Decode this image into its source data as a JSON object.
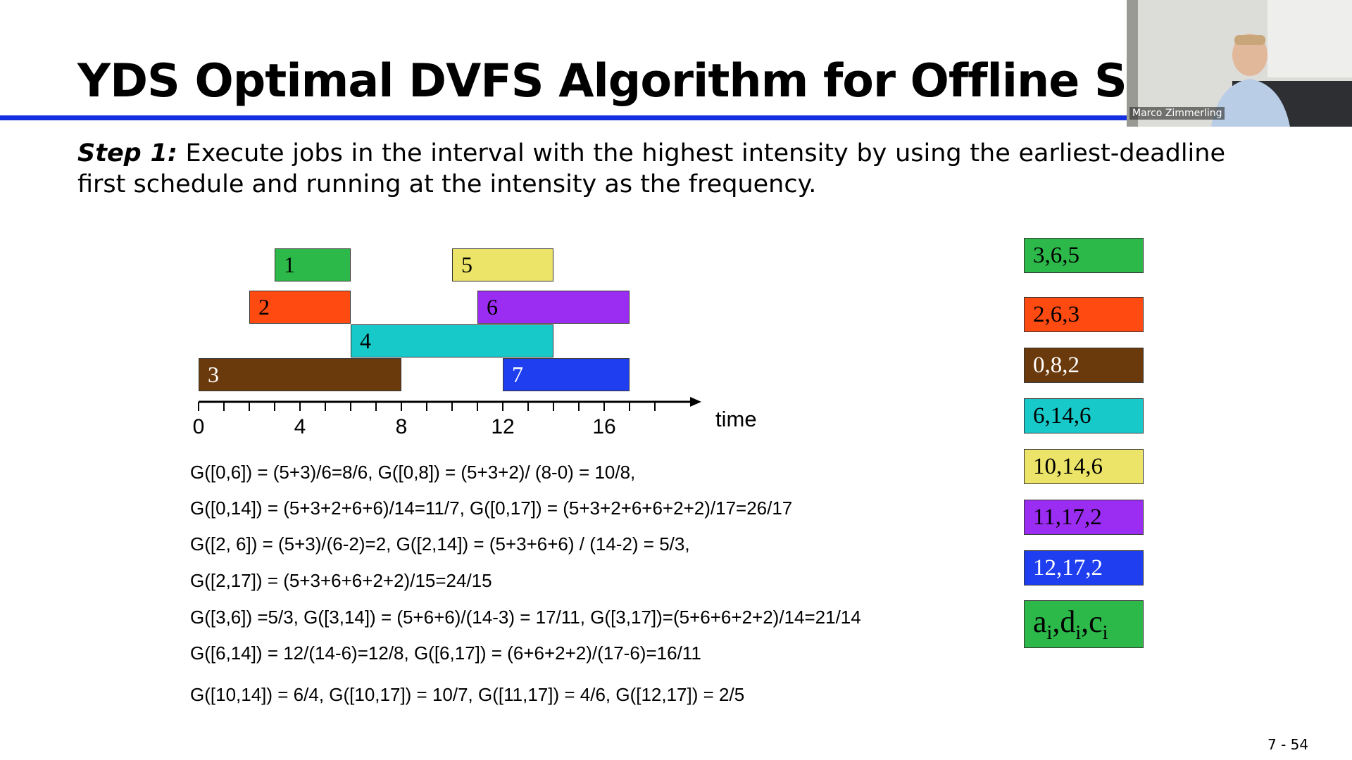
{
  "slide": {
    "title": "YDS Optimal DVFS Algorithm for Offline Schedulin",
    "step_label": "Step 1:",
    "step_body": " Execute jobs in the interval with the highest intensity by using the earliest-deadline first schedule and running at the intensity as the frequency.",
    "page_number": "7 - 54"
  },
  "timeline": {
    "axis_label": "time",
    "tick_labels": [
      "0",
      "4",
      "8",
      "12",
      "16"
    ],
    "jobs": [
      {
        "label": "1",
        "start": 3,
        "end": 6,
        "row": 0,
        "color": "#2db84a"
      },
      {
        "label": "5",
        "start": 10,
        "end": 14,
        "row": 0,
        "color": "#ebe468"
      },
      {
        "label": "2",
        "start": 2,
        "end": 6,
        "row": 1,
        "color": "#ff4a12"
      },
      {
        "label": "6",
        "start": 11,
        "end": 17,
        "row": 1,
        "color": "#9b2cf2"
      },
      {
        "label": "4",
        "start": 6,
        "end": 14,
        "row": 2,
        "color": "#18c9c9"
      },
      {
        "label": "3",
        "start": 0,
        "end": 8,
        "row": 3,
        "color": "#6b3a0c",
        "text_color": "#ffffff"
      },
      {
        "label": "7",
        "start": 12,
        "end": 17,
        "row": 3,
        "color": "#1f3ef0",
        "text_color": "#ffffff"
      }
    ]
  },
  "equations": [
    "G([0,6]) = (5+3)/6=8/6, G([0,8]) = (5+3+2)/ (8-0) = 10/8,",
    "G([0,14]) = (5+3+2+6+6)/14=11/7, G([0,17]) = (5+3+2+6+6+2+2)/17=26/17",
    "G([2, 6]) = (5+3)/(6-2)=2, G([2,14]) = (5+3+6+6) / (14-2) = 5/3,",
    "G([2,17]) = (5+3+6+6+2+2)/15=24/15",
    "G([3,6]) =5/3, G([3,14]) = (5+6+6)/(14-3) = 17/11, G([3,17])=(5+6+6+2+2)/14=21/14",
    "G([6,14]) = 12/(14-6)=12/8, G([6,17]) = (6+6+2+2)/(17-6)=16/11",
    "G([10,14]) = 6/4, G([10,17]) = 10/7, G([11,17]) = 4/6, G([12,17]) = 2/5"
  ],
  "legend": [
    {
      "text": "3,6,5",
      "color": "#2db84a"
    },
    {
      "text": "2,6,3",
      "color": "#ff4a12"
    },
    {
      "text": "0,8,2",
      "color": "#6b3a0c",
      "text_color": "#ffffff"
    },
    {
      "text": "6,14,6",
      "color": "#18c9c9"
    },
    {
      "text": "10,14,6",
      "color": "#ebe468"
    },
    {
      "text": "11,17,2",
      "color": "#9b2cf2"
    },
    {
      "text": "12,17,2",
      "color": "#1f3ef0",
      "text_color": "#ffffff"
    }
  ],
  "legend_key": {
    "a": "a",
    "d": "d",
    "c": "c",
    "sub": "i",
    "color": "#2db84a"
  },
  "webcam": {
    "name": "Marco Zimmerling"
  }
}
